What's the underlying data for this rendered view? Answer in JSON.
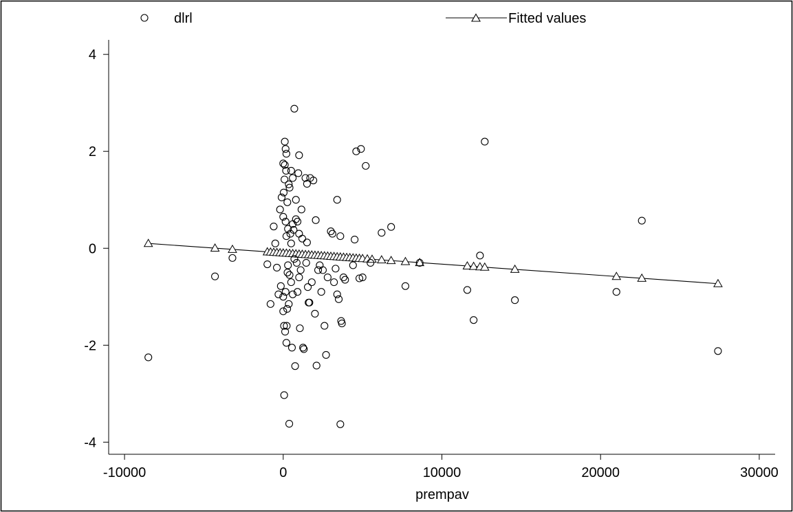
{
  "chart_data": {
    "type": "scatter",
    "xlabel": "prempav",
    "ylabel": "",
    "xlim": [
      -11000,
      31000
    ],
    "ylim": [
      -4.25,
      4.3
    ],
    "x_ticks": [
      -10000,
      0,
      10000,
      20000,
      30000
    ],
    "x_tick_labels": [
      "-10000",
      "0",
      "10000",
      "20000",
      "30000"
    ],
    "y_ticks": [
      -4,
      -2,
      0,
      2,
      4
    ],
    "y_tick_labels": [
      "-4",
      "-2",
      "0",
      "2",
      "4"
    ],
    "grid": false,
    "legend_position": "top",
    "legend": [
      {
        "label": "dlrl",
        "marker": "circle",
        "line": false
      },
      {
        "label": "Fitted values",
        "marker": "triangle",
        "line": true
      }
    ],
    "series": [
      {
        "name": "dlrl",
        "mode": "markers",
        "marker": "circle",
        "points": [
          [
            -8500,
            -2.25
          ],
          [
            -4300,
            -0.58
          ],
          [
            -3200,
            -0.2
          ],
          [
            -1000,
            -0.33
          ],
          [
            -800,
            -1.15
          ],
          [
            -600,
            0.45
          ],
          [
            -500,
            0.1
          ],
          [
            -400,
            -0.4
          ],
          [
            -300,
            -0.95
          ],
          [
            -200,
            0.8
          ],
          [
            -150,
            -0.78
          ],
          [
            -100,
            1.05
          ],
          [
            0,
            1.75
          ],
          [
            0,
            0.65
          ],
          [
            0,
            -1.0
          ],
          [
            0,
            -1.3
          ],
          [
            30,
            1.15
          ],
          [
            50,
            -1.6
          ],
          [
            60,
            -3.03
          ],
          [
            80,
            1.42
          ],
          [
            100,
            2.2
          ],
          [
            100,
            1.72
          ],
          [
            120,
            -1.72
          ],
          [
            150,
            2.05
          ],
          [
            150,
            0.55
          ],
          [
            150,
            -0.9
          ],
          [
            180,
            1.6
          ],
          [
            200,
            1.95
          ],
          [
            200,
            0.25
          ],
          [
            200,
            -1.95
          ],
          [
            220,
            -1.6
          ],
          [
            250,
            -1.25
          ],
          [
            260,
            0.95
          ],
          [
            270,
            -0.5
          ],
          [
            300,
            0.4
          ],
          [
            300,
            -0.35
          ],
          [
            350,
            1.32
          ],
          [
            350,
            -1.15
          ],
          [
            380,
            -3.62
          ],
          [
            400,
            1.25
          ],
          [
            400,
            -0.55
          ],
          [
            450,
            0.3
          ],
          [
            500,
            1.6
          ],
          [
            500,
            0.1
          ],
          [
            500,
            -0.7
          ],
          [
            550,
            -2.05
          ],
          [
            600,
            1.45
          ],
          [
            600,
            0.5
          ],
          [
            600,
            -0.95
          ],
          [
            650,
            0.38
          ],
          [
            700,
            2.88
          ],
          [
            700,
            -0.22
          ],
          [
            750,
            -2.43
          ],
          [
            800,
            1.0
          ],
          [
            800,
            0.6
          ],
          [
            850,
            -0.3
          ],
          [
            900,
            0.55
          ],
          [
            900,
            -0.9
          ],
          [
            950,
            1.55
          ],
          [
            1000,
            1.92
          ],
          [
            1000,
            0.3
          ],
          [
            1000,
            -0.6
          ],
          [
            1050,
            -1.65
          ],
          [
            1100,
            -0.45
          ],
          [
            1150,
            0.8
          ],
          [
            1200,
            0.2
          ],
          [
            1250,
            -2.05
          ],
          [
            1300,
            -2.08
          ],
          [
            1400,
            1.45
          ],
          [
            1450,
            -0.3
          ],
          [
            1500,
            1.33
          ],
          [
            1500,
            0.12
          ],
          [
            1550,
            -0.8
          ],
          [
            1600,
            -1.12
          ],
          [
            1650,
            -1.12
          ],
          [
            1700,
            1.45
          ],
          [
            1800,
            -0.7
          ],
          [
            1900,
            1.4
          ],
          [
            2000,
            -1.35
          ],
          [
            2050,
            0.58
          ],
          [
            2100,
            -2.42
          ],
          [
            2200,
            -0.45
          ],
          [
            2300,
            -0.35
          ],
          [
            2400,
            -0.9
          ],
          [
            2500,
            -0.45
          ],
          [
            2600,
            -1.6
          ],
          [
            2700,
            -2.2
          ],
          [
            2800,
            -0.6
          ],
          [
            3000,
            0.35
          ],
          [
            3100,
            0.3
          ],
          [
            3200,
            -0.7
          ],
          [
            3300,
            -0.42
          ],
          [
            3400,
            1.0
          ],
          [
            3400,
            -0.95
          ],
          [
            3500,
            -1.05
          ],
          [
            3600,
            -3.63
          ],
          [
            3600,
            0.25
          ],
          [
            3650,
            -1.5
          ],
          [
            3700,
            -1.55
          ],
          [
            3800,
            -0.6
          ],
          [
            3900,
            -0.65
          ],
          [
            4400,
            -0.35
          ],
          [
            4500,
            0.18
          ],
          [
            4600,
            2.0
          ],
          [
            4800,
            -0.62
          ],
          [
            4900,
            2.05
          ],
          [
            5000,
            -0.6
          ],
          [
            5200,
            1.7
          ],
          [
            5500,
            -0.3
          ],
          [
            6200,
            0.32
          ],
          [
            6800,
            0.44
          ],
          [
            7700,
            -0.78
          ],
          [
            8600,
            -0.3
          ],
          [
            11600,
            -0.86
          ],
          [
            12000,
            -1.48
          ],
          [
            12400,
            -0.15
          ],
          [
            12700,
            2.2
          ],
          [
            14600,
            -1.07
          ],
          [
            21000,
            -0.9
          ],
          [
            22600,
            0.57
          ],
          [
            27400,
            -2.12
          ]
        ]
      },
      {
        "name": "Fitted values",
        "mode": "lines+markers",
        "marker": "triangle",
        "line_from": [
          -8500,
          0.1
        ],
        "line_to": [
          27400,
          -0.73
        ],
        "x": [
          -8500,
          -4300,
          -3200,
          -1000,
          -800,
          -600,
          -400,
          -200,
          0,
          200,
          400,
          600,
          800,
          1000,
          1200,
          1400,
          1600,
          1800,
          2000,
          2200,
          2400,
          2600,
          2800,
          3000,
          3200,
          3400,
          3600,
          3800,
          4000,
          4200,
          4400,
          4600,
          4800,
          5000,
          5300,
          5600,
          6200,
          6800,
          7700,
          8600,
          11600,
          12000,
          12400,
          12700,
          14600,
          21000,
          22600,
          27400
        ]
      }
    ]
  }
}
